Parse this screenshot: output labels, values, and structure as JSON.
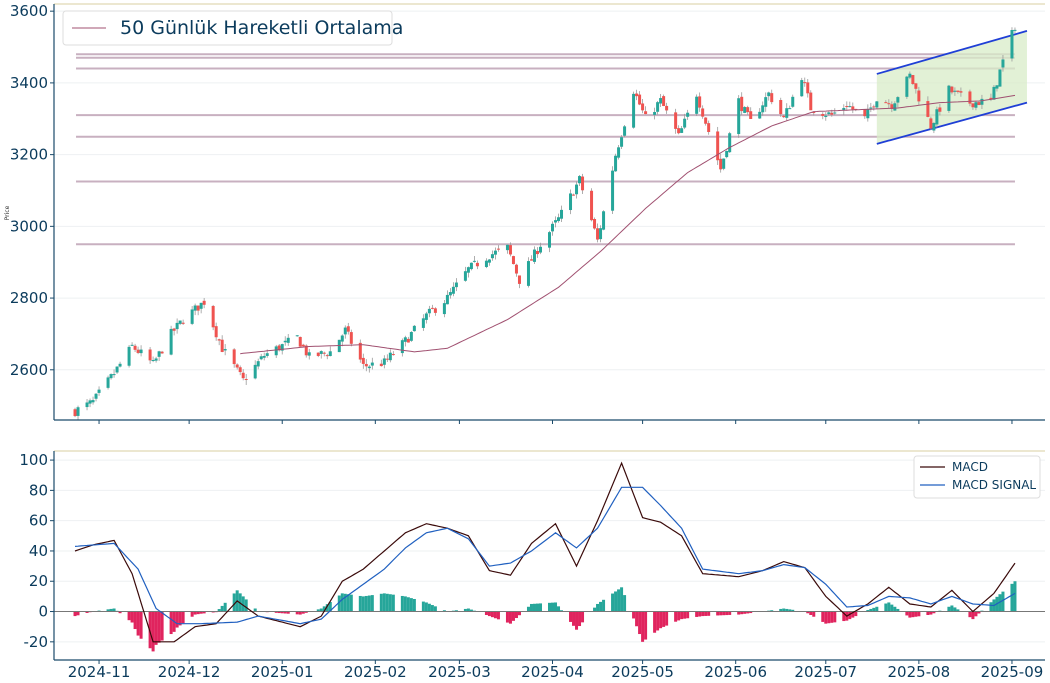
{
  "colors": {
    "up": "#26a69a",
    "down": "#ef5350",
    "ma": "#a05070",
    "level": "#c8b0c0",
    "channel": "#1f3fd6",
    "channel_fill": "#d8ecc8",
    "macd": "#3a0a0a",
    "signal": "#2060c0",
    "hist_pos": "#26a69a",
    "hist_neg": "#e0245e",
    "axis": "#1a4a6a",
    "grid": "#eef0f2",
    "text": "#0b3b5c"
  },
  "chart_data": [
    {
      "type": "candlestick",
      "title": "",
      "ylabel": "Price",
      "ylim": [
        2460,
        3620
      ],
      "yticks": [
        2600,
        2800,
        3000,
        3200,
        3400,
        3600
      ],
      "legend": {
        "label": "50 Günlük Hareketli Ortalama",
        "placement": "top-left"
      },
      "anchors": [
        [
          "2024-10-24",
          2485
        ],
        [
          "2024-10-30",
          2510
        ],
        [
          "2024-11-06",
          2590
        ],
        [
          "2024-11-12",
          2665
        ],
        [
          "2024-11-15",
          2645
        ],
        [
          "2024-11-19",
          2615
        ],
        [
          "2024-11-25",
          2700
        ],
        [
          "2024-11-29",
          2740
        ],
        [
          "2024-12-06",
          2790
        ],
        [
          "2024-12-12",
          2660
        ],
        [
          "2024-12-19",
          2570
        ],
        [
          "2024-12-26",
          2640
        ],
        [
          "2025-01-06",
          2690
        ],
        [
          "2025-01-10",
          2635
        ],
        [
          "2025-01-17",
          2650
        ],
        [
          "2025-01-22",
          2710
        ],
        [
          "2025-01-28",
          2610
        ],
        [
          "2025-02-04",
          2620
        ],
        [
          "2025-02-11",
          2680
        ],
        [
          "2025-02-18",
          2750
        ],
        [
          "2025-02-25",
          2800
        ],
        [
          "2025-03-04",
          2880
        ],
        [
          "2025-03-11",
          2920
        ],
        [
          "2025-03-17",
          2940
        ],
        [
          "2025-03-21",
          2850
        ],
        [
          "2025-03-28",
          2950
        ],
        [
          "2025-04-03",
          3020
        ],
        [
          "2025-04-10",
          3130
        ],
        [
          "2025-04-16",
          2960
        ],
        [
          "2025-04-22",
          3200
        ],
        [
          "2025-04-28",
          3380
        ],
        [
          "2025-05-02",
          3300
        ],
        [
          "2025-05-07",
          3350
        ],
        [
          "2025-05-13",
          3250
        ],
        [
          "2025-05-19",
          3370
        ],
        [
          "2025-05-27",
          3160
        ],
        [
          "2025-06-02",
          3350
        ],
        [
          "2025-06-06",
          3290
        ],
        [
          "2025-06-12",
          3370
        ],
        [
          "2025-06-17",
          3300
        ],
        [
          "2025-06-23",
          3420
        ],
        [
          "2025-06-26",
          3330
        ],
        [
          "2025-07-03",
          3310
        ],
        [
          "2025-07-08",
          3340
        ],
        [
          "2025-07-14",
          3300
        ],
        [
          "2025-07-18",
          3360
        ],
        [
          "2025-07-23",
          3340
        ],
        [
          "2025-07-29",
          3420
        ],
        [
          "2025-08-05",
          3280
        ],
        [
          "2025-08-11",
          3380
        ],
        [
          "2025-08-18",
          3345
        ],
        [
          "2025-08-25",
          3350
        ],
        [
          "2025-08-29",
          3460
        ],
        [
          "2025-09-02",
          3560
        ]
      ],
      "ma_anchors": [
        [
          "2024-12-18",
          2645
        ],
        [
          "2025-01-10",
          2665
        ],
        [
          "2025-01-28",
          2670
        ],
        [
          "2025-02-14",
          2650
        ],
        [
          "2025-02-25",
          2660
        ],
        [
          "2025-03-17",
          2740
        ],
        [
          "2025-04-03",
          2830
        ],
        [
          "2025-04-17",
          2930
        ],
        [
          "2025-05-02",
          3050
        ],
        [
          "2025-05-16",
          3150
        ],
        [
          "2025-05-30",
          3220
        ],
        [
          "2025-06-13",
          3280
        ],
        [
          "2025-06-27",
          3320
        ],
        [
          "2025-07-11",
          3325
        ],
        [
          "2025-07-25",
          3330
        ],
        [
          "2025-08-08",
          3345
        ],
        [
          "2025-08-22",
          3350
        ],
        [
          "2025-09-02",
          3365
        ]
      ],
      "levels": [
        3480,
        3470,
        3440,
        3310,
        3250,
        3125,
        2950
      ],
      "levels_x_range": [
        "2024-10-24",
        "2025-09-02"
      ],
      "channel": {
        "upper": [
          [
            "2025-07-18",
            3425
          ],
          [
            "2025-09-06",
            3545
          ]
        ],
        "lower": [
          [
            "2025-07-18",
            3230
          ],
          [
            "2025-09-06",
            3345
          ]
        ]
      }
    },
    {
      "type": "line+bar",
      "title": "",
      "ylim": [
        -32,
        106
      ],
      "yticks": [
        -20,
        0,
        20,
        40,
        60,
        80,
        100
      ],
      "legend": {
        "placement": "top-right",
        "entries": [
          "MACD",
          "MACD SIGNAL"
        ]
      },
      "macd_anchors": [
        [
          "2024-10-24",
          40
        ],
        [
          "2024-10-30",
          44
        ],
        [
          "2024-11-06",
          47
        ],
        [
          "2024-11-12",
          25
        ],
        [
          "2024-11-19",
          -20
        ],
        [
          "2024-11-26",
          -20
        ],
        [
          "2024-12-03",
          -10
        ],
        [
          "2024-12-10",
          -8
        ],
        [
          "2024-12-17",
          7
        ],
        [
          "2024-12-24",
          -3
        ],
        [
          "2025-01-07",
          -10
        ],
        [
          "2025-01-14",
          -3
        ],
        [
          "2025-01-21",
          20
        ],
        [
          "2025-01-28",
          28
        ],
        [
          "2025-02-04",
          40
        ],
        [
          "2025-02-11",
          52
        ],
        [
          "2025-02-18",
          58
        ],
        [
          "2025-02-25",
          55
        ],
        [
          "2025-03-04",
          50
        ],
        [
          "2025-03-11",
          27
        ],
        [
          "2025-03-18",
          24
        ],
        [
          "2025-03-25",
          45
        ],
        [
          "2025-04-02",
          58
        ],
        [
          "2025-04-09",
          30
        ],
        [
          "2025-04-16",
          60
        ],
        [
          "2025-04-24",
          98
        ],
        [
          "2025-05-01",
          62
        ],
        [
          "2025-05-07",
          59
        ],
        [
          "2025-05-14",
          50
        ],
        [
          "2025-05-21",
          25
        ],
        [
          "2025-06-02",
          23
        ],
        [
          "2025-06-10",
          27
        ],
        [
          "2025-06-17",
          33
        ],
        [
          "2025-06-24",
          29
        ],
        [
          "2025-07-01",
          10
        ],
        [
          "2025-07-08",
          -3
        ],
        [
          "2025-07-15",
          5
        ],
        [
          "2025-07-22",
          16
        ],
        [
          "2025-07-29",
          5
        ],
        [
          "2025-08-05",
          3
        ],
        [
          "2025-08-12",
          14
        ],
        [
          "2025-08-19",
          0
        ],
        [
          "2025-08-26",
          12
        ],
        [
          "2025-09-02",
          32
        ]
      ],
      "signal_anchors": [
        [
          "2024-10-24",
          43
        ],
        [
          "2024-11-06",
          45
        ],
        [
          "2024-11-14",
          28
        ],
        [
          "2024-11-20",
          2
        ],
        [
          "2024-11-27",
          -8
        ],
        [
          "2024-12-05",
          -8
        ],
        [
          "2024-12-17",
          -7
        ],
        [
          "2024-12-24",
          -3
        ],
        [
          "2025-01-07",
          -8
        ],
        [
          "2025-01-14",
          -5
        ],
        [
          "2025-01-21",
          8
        ],
        [
          "2025-01-28",
          18
        ],
        [
          "2025-02-04",
          28
        ],
        [
          "2025-02-11",
          42
        ],
        [
          "2025-02-18",
          52
        ],
        [
          "2025-02-25",
          55
        ],
        [
          "2025-03-04",
          48
        ],
        [
          "2025-03-11",
          30
        ],
        [
          "2025-03-18",
          32
        ],
        [
          "2025-03-25",
          40
        ],
        [
          "2025-04-02",
          52
        ],
        [
          "2025-04-09",
          42
        ],
        [
          "2025-04-16",
          55
        ],
        [
          "2025-04-24",
          82
        ],
        [
          "2025-05-01",
          82
        ],
        [
          "2025-05-07",
          70
        ],
        [
          "2025-05-14",
          55
        ],
        [
          "2025-05-21",
          28
        ],
        [
          "2025-06-02",
          25
        ],
        [
          "2025-06-10",
          27
        ],
        [
          "2025-06-17",
          31
        ],
        [
          "2025-06-24",
          29
        ],
        [
          "2025-07-01",
          18
        ],
        [
          "2025-07-08",
          3
        ],
        [
          "2025-07-15",
          4
        ],
        [
          "2025-07-22",
          10
        ],
        [
          "2025-07-29",
          9
        ],
        [
          "2025-08-05",
          5
        ],
        [
          "2025-08-12",
          10
        ],
        [
          "2025-08-19",
          5
        ],
        [
          "2025-08-26",
          4
        ],
        [
          "2025-09-02",
          12
        ]
      ]
    }
  ],
  "xticks": [
    "2024-11",
    "2024-12",
    "2025-01",
    "2025-02",
    "2025-03",
    "2025-04",
    "2025-05",
    "2025-06",
    "2025-07",
    "2025-08",
    "2025-09"
  ]
}
